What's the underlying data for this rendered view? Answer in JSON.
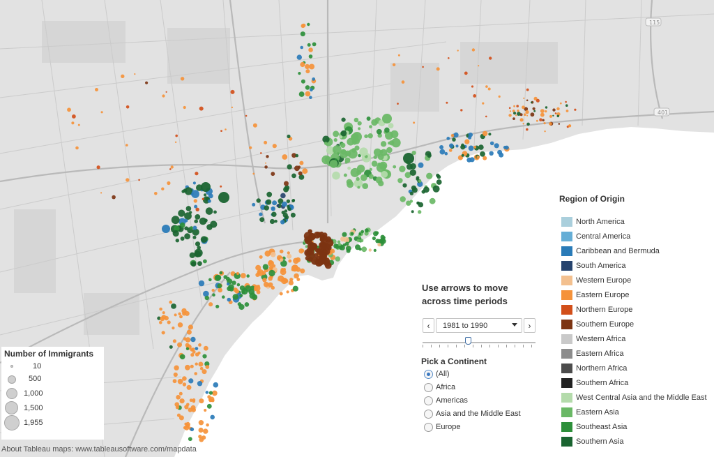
{
  "map": {
    "highway_labels": [
      "115",
      "401"
    ],
    "regions": [
      {
        "name": "North America",
        "color": "#aacfdc"
      },
      {
        "name": "Central America",
        "color": "#66aed6"
      },
      {
        "name": "Caribbean and Bermuda",
        "color": "#2a7bb8"
      },
      {
        "name": "South America",
        "color": "#27446e"
      },
      {
        "name": "Western Europe",
        "color": "#f3c08f"
      },
      {
        "name": "Eastern Europe",
        "color": "#f5923a"
      },
      {
        "name": "Northern Europe",
        "color": "#d24f1a"
      },
      {
        "name": "Southern Europe",
        "color": "#7c3412"
      },
      {
        "name": "Western Africa",
        "color": "#c9c9c9"
      },
      {
        "name": "Eastern Africa",
        "color": "#8c8c8c"
      },
      {
        "name": "Northern Africa",
        "color": "#4c4c4c"
      },
      {
        "name": "Southern Africa",
        "color": "#222222"
      },
      {
        "name": "West Central Asia and the Middle East",
        "color": "#b4dbab"
      },
      {
        "name": "Eastern Asia",
        "color": "#6ab866"
      },
      {
        "name": "Southeast Asia",
        "color": "#2d8f3a"
      },
      {
        "name": "Southern Asia",
        "color": "#1a6430"
      }
    ]
  },
  "size_legend": {
    "title": "Number of Immigrants",
    "items": [
      "10",
      "500",
      "1,000",
      "1,500",
      "1,955"
    ]
  },
  "controls": {
    "instruction": "Use arrows to move across time periods",
    "prev_icon": "chevron-left-icon",
    "next_icon": "chevron-right-icon",
    "period_selected": "1981 to 1990",
    "slider_position": 0.4,
    "continent_title": "Pick a Continent",
    "continent_options": [
      "(All)",
      "Africa",
      "Americas",
      "Asia and the Middle East",
      "Europe"
    ],
    "continent_selected": "(All)"
  },
  "legend_title": "Region of Origin",
  "footer": "About Tableau maps: www.tableausoftware.com/mapdata"
}
